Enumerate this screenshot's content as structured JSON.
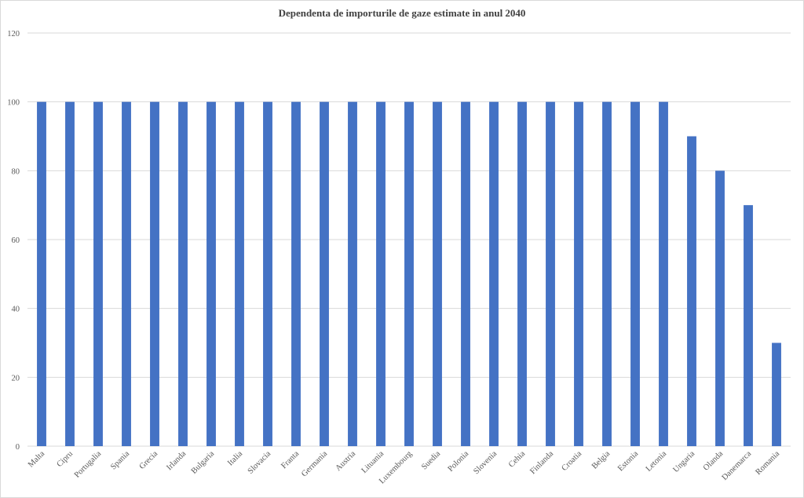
{
  "chart_data": {
    "type": "bar",
    "title": "Dependenta de importurile de gaze estimate in anul 2040",
    "xlabel": "",
    "ylabel": "",
    "categories": [
      "Malta",
      "Cipru",
      "Portugalia",
      "Spania",
      "Grecia",
      "Irlanda",
      "Bulgaria",
      "Italia",
      "Slovacia",
      "Franta",
      "Germania",
      "Austria",
      "Lituania",
      "Luxembourg",
      "Suedia",
      "Polonia",
      "Slovenia",
      "Cehia",
      "Finlanda",
      "Croatia",
      "Belgia",
      "Estonia",
      "Letonia",
      "Ungaria",
      "Olanda",
      "Danemarca",
      "Romania"
    ],
    "values": [
      100,
      100,
      100,
      100,
      100,
      100,
      100,
      100,
      100,
      100,
      100,
      100,
      100,
      100,
      100,
      100,
      100,
      100,
      100,
      100,
      100,
      100,
      100,
      90,
      80,
      70,
      30
    ],
    "ylim": [
      0,
      120
    ],
    "yticks": [
      0,
      20,
      40,
      60,
      80,
      100,
      120
    ],
    "grid": true,
    "bar_color": "#4472c4",
    "grid_color": "#d9d9d9"
  }
}
